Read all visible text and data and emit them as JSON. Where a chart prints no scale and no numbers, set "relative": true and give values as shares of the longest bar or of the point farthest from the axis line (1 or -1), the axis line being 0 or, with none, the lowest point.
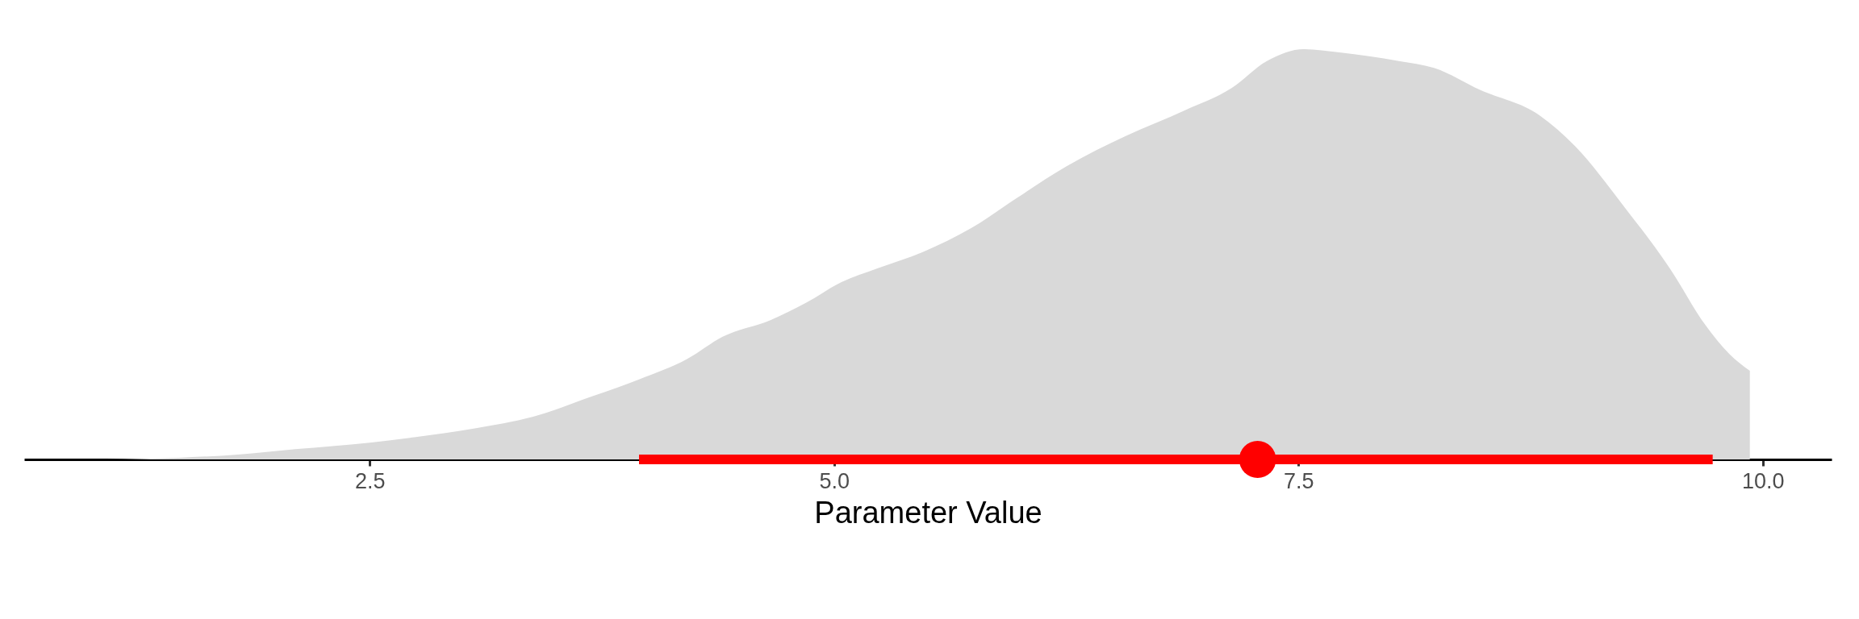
{
  "chart_data": {
    "type": "area",
    "relative": true,
    "xlabel": "Parameter Value",
    "xlim": [
      0.64,
      10.37
    ],
    "xticks": [
      2.5,
      {
        "value": 5,
        "label": "5.0"
      },
      7.5,
      {
        "value": 10,
        "label": "10.0"
      }
    ],
    "grid": false,
    "series": [
      {
        "color": "#d9d9d9",
        "x": [
          1.08,
          1.47,
          1.79,
          2.1,
          2.5,
          2.74,
          3.06,
          3.38,
          3.7,
          3.95,
          4.21,
          4.4,
          4.66,
          4.85,
          5.04,
          5.23,
          5.48,
          5.74,
          5.99,
          6.25,
          6.57,
          6.89,
          7.14,
          7.33,
          7.53,
          7.72,
          8.04,
          8.23,
          8.48,
          8.8,
          8.99,
          9.25,
          9.5,
          9.69,
          9.82,
          9.93
        ],
        "values": [
          0,
          0.004,
          0.012,
          0.025,
          0.041,
          0.054,
          0.075,
          0.104,
          0.154,
          0.195,
          0.245,
          0.299,
          0.34,
          0.382,
          0.432,
          0.465,
          0.506,
          0.564,
          0.639,
          0.714,
          0.788,
          0.851,
          0.905,
          0.971,
          1,
          0.992,
          0.971,
          0.954,
          0.9,
          0.838,
          0.763,
          0.618,
          0.465,
          0.328,
          0.257,
          0.216
        ]
      },
      {
        "type": "line",
        "color": "#ff0000",
        "x": [
          3.95,
          9.73
        ],
        "values": [
          0,
          0
        ]
      },
      {
        "type": "scatter",
        "color": "#ff0000",
        "marker": "circle",
        "x": [
          7.28
        ],
        "values": [
          0
        ]
      }
    ]
  }
}
